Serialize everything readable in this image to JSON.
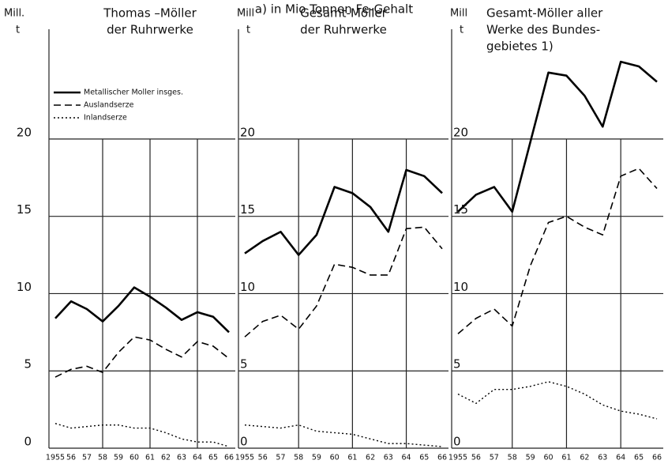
{
  "header": {
    "title": "a) in Mio Tonnen Fe-Gehalt"
  },
  "chart_data": [
    {
      "type": "line",
      "title": [
        "Thomas –Möller",
        "der Ruhrwerke"
      ],
      "y_label": [
        "Mill.",
        "t"
      ],
      "categories": [
        "1955",
        "56",
        "57",
        "58",
        "59",
        "60",
        "61",
        "62",
        "63",
        "64",
        "65",
        "66"
      ],
      "ylim": [
        0,
        27
      ],
      "yticks": [
        0,
        5,
        10,
        15,
        20
      ],
      "grid": true,
      "legend": "top-left",
      "series": [
        {
          "name": "Metallischer Moller insges.",
          "color": "#000000",
          "dash": "solid",
          "values": [
            8.4,
            9.5,
            9.0,
            8.2,
            9.2,
            10.4,
            9.8,
            9.1,
            8.3,
            8.8,
            8.5,
            7.5
          ]
        },
        {
          "name": "Auslandserze",
          "color": "#000000",
          "dash": "dashed",
          "values": [
            4.6,
            5.1,
            5.3,
            4.9,
            6.2,
            7.2,
            7.0,
            6.4,
            5.9,
            6.9,
            6.6,
            5.8
          ]
        },
        {
          "name": "Inlandserze",
          "color": "#000000",
          "dash": "dotted",
          "values": [
            1.6,
            1.3,
            1.4,
            1.5,
            1.5,
            1.3,
            1.3,
            1.0,
            0.6,
            0.4,
            0.4,
            0.1
          ]
        }
      ]
    },
    {
      "type": "line",
      "title": [
        "Gesamt-Möller",
        "der Ruhrwerke"
      ],
      "y_label": [
        "Mill",
        "t"
      ],
      "categories": [
        "1955",
        "56",
        "57",
        "58",
        "59",
        "60",
        "61",
        "62",
        "63",
        "64",
        "65",
        "66"
      ],
      "ylim": [
        0,
        27
      ],
      "yticks": [
        0,
        5,
        10,
        15,
        20
      ],
      "grid": true,
      "series": [
        {
          "color": "#000000",
          "dash": "solid",
          "values": [
            12.6,
            13.4,
            14.0,
            12.5,
            13.8,
            16.9,
            16.5,
            15.6,
            14.0,
            18.0,
            17.6,
            16.5
          ]
        },
        {
          "color": "#000000",
          "dash": "dashed",
          "values": [
            7.2,
            8.2,
            8.6,
            7.7,
            9.2,
            11.9,
            11.7,
            11.2,
            11.2,
            14.2,
            14.3,
            12.9
          ]
        },
        {
          "color": "#000000",
          "dash": "dotted",
          "values": [
            1.5,
            1.4,
            1.3,
            1.5,
            1.1,
            1.0,
            0.9,
            0.6,
            0.3,
            0.3,
            0.2,
            0.1
          ]
        }
      ]
    },
    {
      "type": "line",
      "title": [
        "Gesamt-Möller aller",
        "Werke des Bundes-",
        "gebietes 1)"
      ],
      "y_label": [
        "Mill",
        "t"
      ],
      "categories": [
        "1955",
        "56",
        "57",
        "58",
        "59",
        "60",
        "61",
        "62",
        "63",
        "64",
        "65",
        "66"
      ],
      "ylim": [
        0,
        27
      ],
      "yticks": [
        0,
        5,
        10,
        15,
        20
      ],
      "grid": true,
      "series": [
        {
          "color": "#000000",
          "dash": "solid",
          "values": [
            15.3,
            16.4,
            16.9,
            15.3,
            19.8,
            24.3,
            24.1,
            22.8,
            20.8,
            25.0,
            24.7,
            23.7
          ]
        },
        {
          "color": "#000000",
          "dash": "dashed",
          "values": [
            7.4,
            8.4,
            9.0,
            7.9,
            11.8,
            14.6,
            15.0,
            14.3,
            13.8,
            17.6,
            18.1,
            16.8
          ]
        },
        {
          "color": "#000000",
          "dash": "dotted",
          "values": [
            3.5,
            2.9,
            3.8,
            3.8,
            4.0,
            4.3,
            4.0,
            3.5,
            2.8,
            2.4,
            2.2,
            1.9
          ]
        }
      ]
    }
  ]
}
